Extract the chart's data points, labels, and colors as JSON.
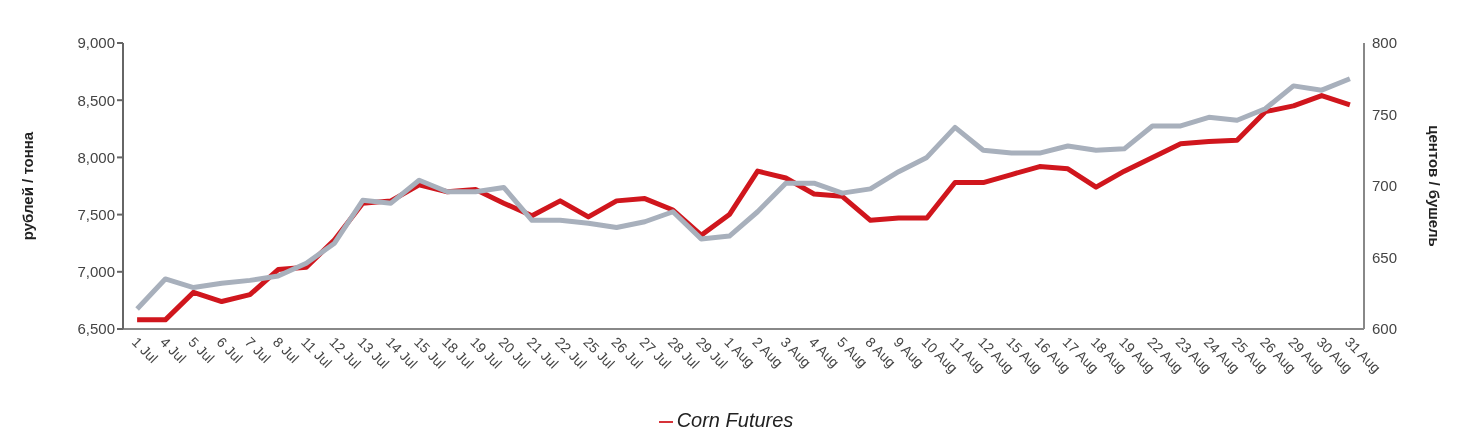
{
  "chart_data": {
    "type": "line",
    "ylabel": "рублей / тонна",
    "y2label": "центов / бушель",
    "categories": [
      "1 Jul",
      "4 Jul",
      "5 Jul",
      "6 Jul",
      "7 Jul",
      "8 Jul",
      "11 Jul",
      "12 Jul",
      "13 Jul",
      "14 Jul",
      "15 Jul",
      "18 Jul",
      "19 Jul",
      "20 Jul",
      "21 Jul",
      "22 Jul",
      "25 Jul",
      "26 Jul",
      "27 Jul",
      "28 Jul",
      "29 Jul",
      "1 Aug",
      "2 Aug",
      "3 Aug",
      "4 Aug",
      "5 Aug",
      "8 Aug",
      "9 Aug",
      "10 Aug",
      "11 Aug",
      "12 Aug",
      "15 Aug",
      "16 Aug",
      "17 Aug",
      "18 Aug",
      "19 Aug",
      "22 Aug",
      "23 Aug",
      "24 Aug",
      "25 Aug",
      "26 Aug",
      "29 Aug",
      "30 Aug",
      "31 Aug"
    ],
    "series": [
      {
        "name": "Corn  Futures",
        "color": "#d0161d",
        "values": [
          6580,
          6580,
          6820,
          6740,
          6800,
          7020,
          7040,
          7280,
          7600,
          7620,
          7760,
          7700,
          7720,
          7600,
          7490,
          7620,
          7480,
          7620,
          7640,
          7540,
          7320,
          7500,
          7880,
          7820,
          7680,
          7660,
          7450,
          7470,
          7470,
          7780,
          7780,
          7850,
          7920,
          7900,
          7740,
          7880,
          8000,
          8120,
          8140,
          8150,
          8400,
          8450,
          8540,
          8460
        ]
      },
      {
        "color": "#a8b0bc",
        "axis": "y2",
        "values": [
          614,
          635,
          629,
          632,
          634,
          637,
          646,
          660,
          690,
          688,
          704,
          696,
          696,
          699,
          676,
          676,
          674,
          671,
          675,
          682,
          663,
          665,
          682,
          702,
          702,
          695,
          698,
          710,
          720,
          741,
          725,
          723,
          723,
          728,
          725,
          726,
          742,
          742,
          748,
          746,
          754,
          770,
          767,
          775
        ]
      }
    ],
    "ylim": [
      6500,
      9000
    ],
    "yticks": [
      {
        "value": 6500,
        "label": "6,500"
      },
      {
        "value": 7000,
        "label": "7,000"
      },
      {
        "value": 7500,
        "label": "7,500"
      },
      {
        "value": 8000,
        "label": "8,000"
      },
      {
        "value": 8500,
        "label": "8,500"
      },
      {
        "value": 9000,
        "label": "9,000"
      }
    ],
    "y2lim": [
      600,
      800
    ],
    "y2ticks": [
      600,
      650,
      700,
      750,
      800
    ],
    "grid": false,
    "legend": "bottom",
    "marker": "none",
    "line_style": "solid"
  }
}
